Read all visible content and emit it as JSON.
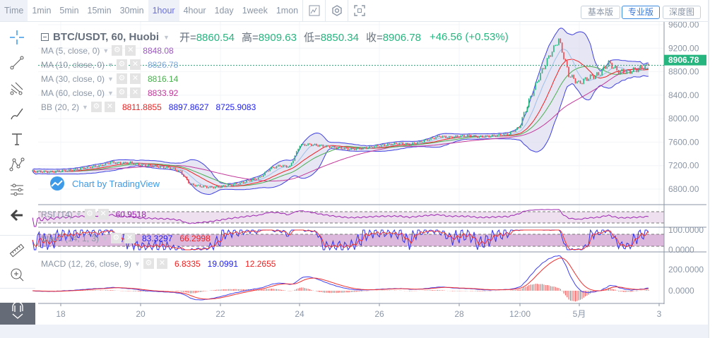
{
  "toolbar": {
    "timeframes": [
      "Time",
      "1min",
      "5min",
      "15min",
      "30min",
      "1hour",
      "4hour",
      "1day",
      "1week",
      "1mon"
    ],
    "active": "1hour",
    "icons": [
      "indicator-icon",
      "settings-icon",
      "fullscreen-icon"
    ],
    "versions": [
      "基本版",
      "专业版",
      "深度图"
    ],
    "active_version": "专业版"
  },
  "symbol": {
    "title": "BTC/USDT, 60, Huobi",
    "open_label": "开=",
    "open": "8860.54",
    "high_label": "高=",
    "high": "8909.63",
    "low_label": "低=",
    "low": "8850.34",
    "close_label": "收=",
    "close": "8906.78",
    "change": "+46.56 (+0.53%)"
  },
  "indicators": [
    {
      "label": "MA (5, close, 0)",
      "values": [
        "8848.08"
      ],
      "colors": [
        "#9b59c0"
      ]
    },
    {
      "label": "MA (10, close, 0)",
      "values": [
        "8826.78"
      ],
      "colors": [
        "#7fa8d8"
      ]
    },
    {
      "label": "MA (30, close, 0)",
      "values": [
        "8816.14"
      ],
      "colors": [
        "#4caf50"
      ]
    },
    {
      "label": "MA (60, close, 0)",
      "values": [
        "8833.92"
      ],
      "colors": [
        "#c2389a"
      ]
    },
    {
      "label": "BB (20, 2)",
      "values": [
        "8811.8855",
        "8897.8627",
        "8725.9083"
      ],
      "colors": [
        "#f02020",
        "#2020f0",
        "#2020f0"
      ]
    }
  ],
  "rsi": {
    "label": "RSI (14)",
    "value": "60.9518"
  },
  "stoch": {
    "label": "Stoch (14, 1, 3)",
    "k": "83.3297",
    "d": "66.2998",
    "axis": [
      "100.0000",
      "0.0000"
    ]
  },
  "macd": {
    "label": "MACD (12, 26, close, 9)",
    "hist": "6.8335",
    "macd": "19.0991",
    "signal": "12.2655",
    "axis": [
      "200.0000",
      "0.0000"
    ]
  },
  "watermark": "Chart by TradingView",
  "last_price": "8906.78",
  "colors": {
    "up": "#26b57f",
    "down": "#f0484e",
    "bb_fill": "#dcdcf0",
    "accent": "#3c78d8"
  },
  "chart_data": {
    "type": "candlestick",
    "start": "04-17 12:00",
    "interval": "6h",
    "closes": [
      7100,
      7090,
      7110,
      7120,
      7150,
      7180,
      7200,
      7260,
      7240,
      7250,
      7210,
      7200,
      7180,
      7160,
      7100,
      6880,
      6850,
      6830,
      6840,
      6870,
      6900,
      6950,
      7000,
      7150,
      7200,
      7180,
      7550,
      7560,
      7540,
      7520,
      7500,
      7480,
      7490,
      7510,
      7540,
      7560,
      7580,
      7560,
      7600,
      7650,
      7700,
      7680,
      7700,
      7710,
      7690,
      7700,
      7720,
      7740,
      7850,
      8300,
      8700,
      9050,
      9350,
      8750,
      8600,
      8700,
      8750,
      8950,
      8800,
      8800,
      8850,
      8906.78
    ],
    "y_ticks": [
      "9600.00",
      "9200.00",
      "8800.00",
      "8400.00",
      "8000.00",
      "7600.00",
      "7200.00",
      "6800.00"
    ],
    "ylim": [
      6600,
      9700
    ],
    "x_ticks": [
      "18",
      "20",
      "22",
      "24",
      "26",
      "28",
      "12:00",
      "5月",
      "3"
    ]
  }
}
